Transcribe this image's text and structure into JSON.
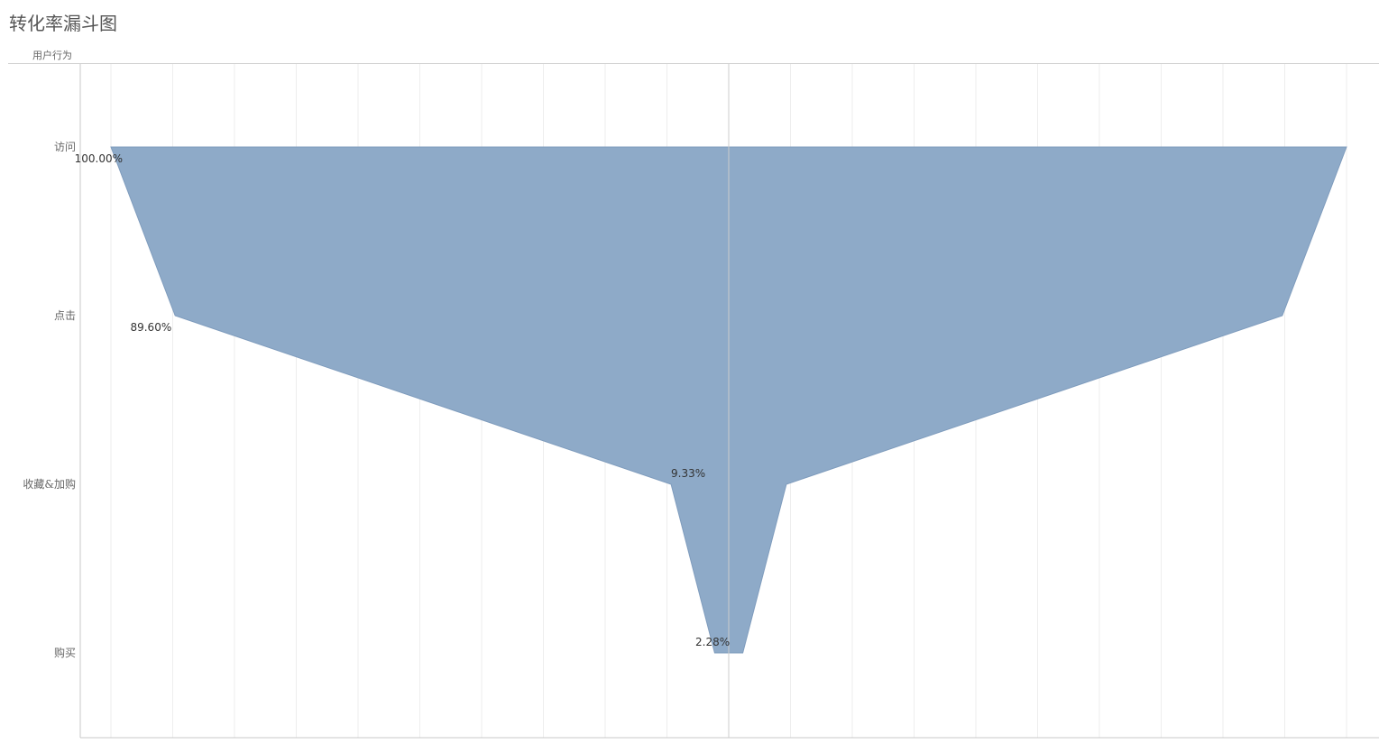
{
  "title": "转化率漏斗图",
  "row_header": "用户行为",
  "chart_data": {
    "type": "area",
    "orientation": "vertical-funnel",
    "title": "转化率漏斗图",
    "ylabel": "用户行为",
    "categories": [
      "访问",
      "点击",
      "收藏&加购",
      "购买"
    ],
    "values": [
      100.0,
      89.6,
      9.33,
      2.28
    ],
    "labels": [
      "100.00%",
      "89.60%",
      "9.33%",
      "2.28%"
    ],
    "unit": "%",
    "mirrored": true,
    "fill_color": "#8eaac8",
    "grid": true
  }
}
